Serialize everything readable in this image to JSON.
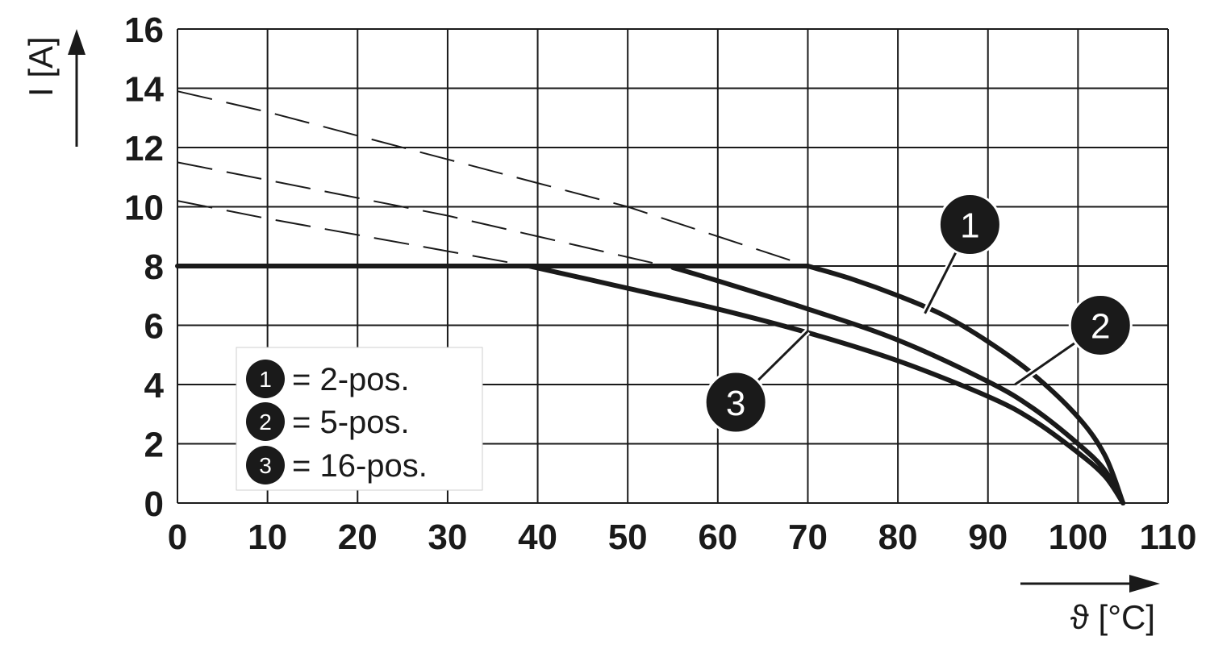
{
  "chart_data": {
    "type": "line",
    "xlabel": "ϑ [°C]",
    "ylabel": "I [A]",
    "xlim": [
      0,
      110
    ],
    "ylim": [
      0,
      16
    ],
    "xticks": [
      0,
      10,
      20,
      30,
      40,
      50,
      60,
      70,
      80,
      90,
      100,
      110
    ],
    "yticks": [
      0,
      2,
      4,
      6,
      8,
      10,
      12,
      14,
      16
    ],
    "x_tick_labels": [
      "0",
      "10",
      "20",
      "30",
      "40",
      "50",
      "60",
      "70",
      "80",
      "90",
      "100",
      "110"
    ],
    "y_tick_labels": [
      "0",
      "2",
      "4",
      "6",
      "8",
      "10",
      "12",
      "14",
      "16"
    ],
    "grid": true,
    "limit_line": {
      "y": 8,
      "x_start": 0
    },
    "series": [
      {
        "marker": "1",
        "name": "2-pos.",
        "dashed_extension": [
          [
            0,
            13.9
          ],
          [
            10,
            13.2
          ],
          [
            20,
            12.4
          ],
          [
            30,
            11.6
          ],
          [
            40,
            10.8
          ],
          [
            50,
            10.0
          ],
          [
            60,
            9.0
          ],
          [
            70,
            8.0
          ]
        ],
        "values": [
          [
            70,
            8.0
          ],
          [
            75,
            7.55
          ],
          [
            80,
            7.0
          ],
          [
            85,
            6.35
          ],
          [
            90,
            5.45
          ],
          [
            95,
            4.35
          ],
          [
            100,
            2.9
          ],
          [
            103,
            1.6
          ],
          [
            105,
            0
          ]
        ]
      },
      {
        "marker": "2",
        "name": "5-pos.",
        "dashed_extension": [
          [
            0,
            11.5
          ],
          [
            10,
            10.9
          ],
          [
            20,
            10.3
          ],
          [
            30,
            9.7
          ],
          [
            40,
            9.0
          ],
          [
            50,
            8.3
          ],
          [
            55,
            7.95
          ]
        ],
        "values": [
          [
            55,
            7.95
          ],
          [
            60,
            7.5
          ],
          [
            70,
            6.55
          ],
          [
            80,
            5.5
          ],
          [
            90,
            4.1
          ],
          [
            95,
            3.2
          ],
          [
            100,
            2.0
          ],
          [
            103,
            1.1
          ],
          [
            105,
            0
          ]
        ]
      },
      {
        "marker": "3",
        "name": "16-pos.",
        "dashed_extension": [
          [
            0,
            10.2
          ],
          [
            10,
            9.6
          ],
          [
            20,
            9.05
          ],
          [
            30,
            8.5
          ],
          [
            39,
            8.0
          ]
        ],
        "values": [
          [
            39,
            8.0
          ],
          [
            50,
            7.25
          ],
          [
            60,
            6.55
          ],
          [
            70,
            5.75
          ],
          [
            80,
            4.8
          ],
          [
            90,
            3.6
          ],
          [
            95,
            2.8
          ],
          [
            100,
            1.7
          ],
          [
            103,
            0.9
          ],
          [
            105,
            0
          ]
        ]
      }
    ],
    "legend": {
      "placement": "lower-left",
      "entries": [
        {
          "marker": "1",
          "label": "= 2-pos."
        },
        {
          "marker": "2",
          "label": "= 5-pos."
        },
        {
          "marker": "3",
          "label": "= 16-pos."
        }
      ]
    },
    "callouts": [
      {
        "marker": "1",
        "badge": [
          88,
          9.4
        ],
        "target": [
          83,
          6.4
        ]
      },
      {
        "marker": "2",
        "badge": [
          102.5,
          6.0
        ],
        "target": [
          93,
          4.0
        ]
      },
      {
        "marker": "3",
        "badge": [
          62,
          3.4
        ],
        "target": [
          70,
          5.8
        ]
      }
    ]
  }
}
